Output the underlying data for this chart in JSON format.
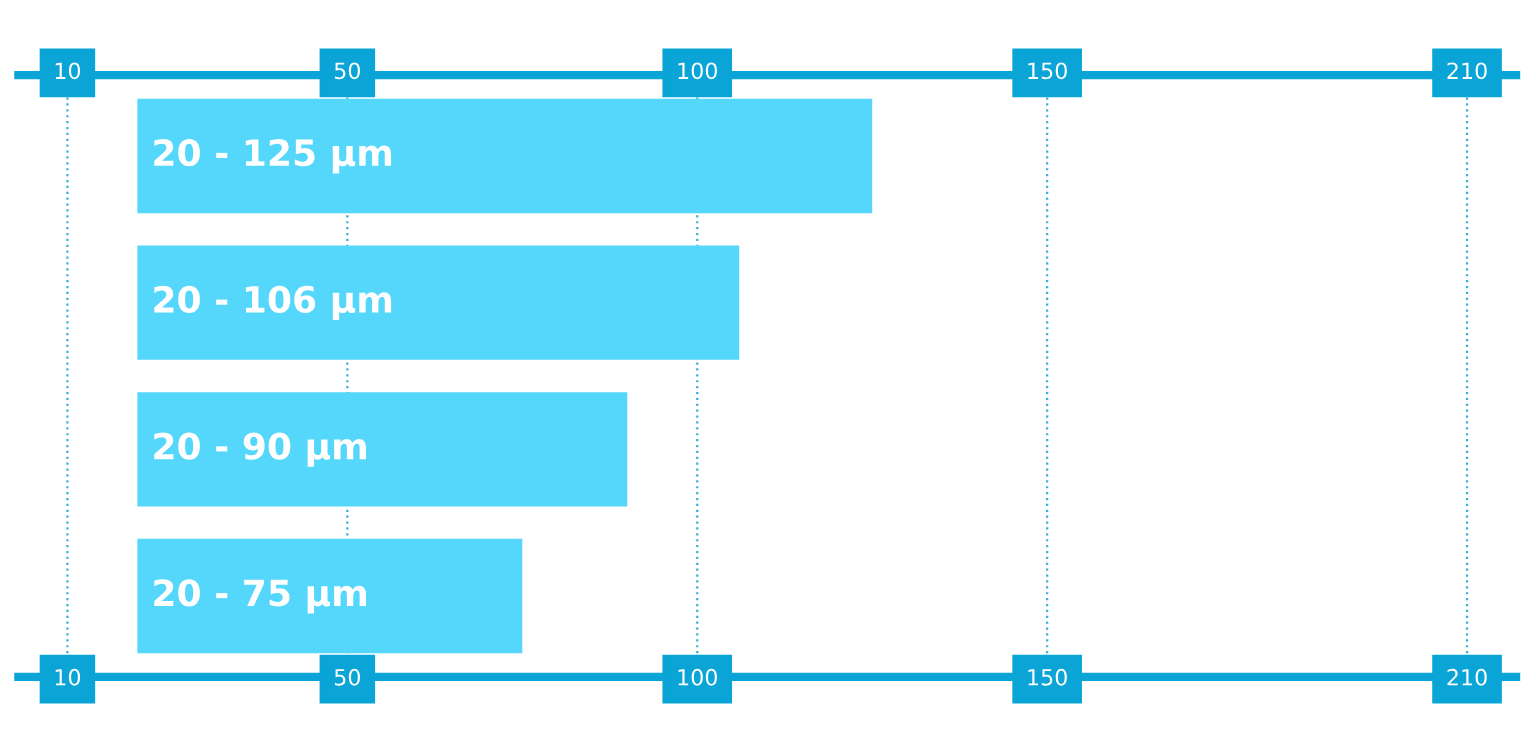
{
  "chart_data": {
    "type": "bar",
    "orientation": "horizontal",
    "categories": [
      "20 - 125 µm",
      "20 - 106 µm",
      "20 - 90 µm",
      "20 - 75 µm"
    ],
    "base": [
      20,
      20,
      20,
      20
    ],
    "values": [
      105,
      86,
      70,
      55
    ],
    "color": "#55d6fb",
    "xlim": [
      3,
      217
    ],
    "xticks": [
      10,
      50,
      100,
      150,
      210
    ],
    "x2lim": [
      3,
      217
    ],
    "x2ticks": [
      10,
      50,
      100,
      150,
      210
    ],
    "grid": "x",
    "line_style": "dotted"
  }
}
